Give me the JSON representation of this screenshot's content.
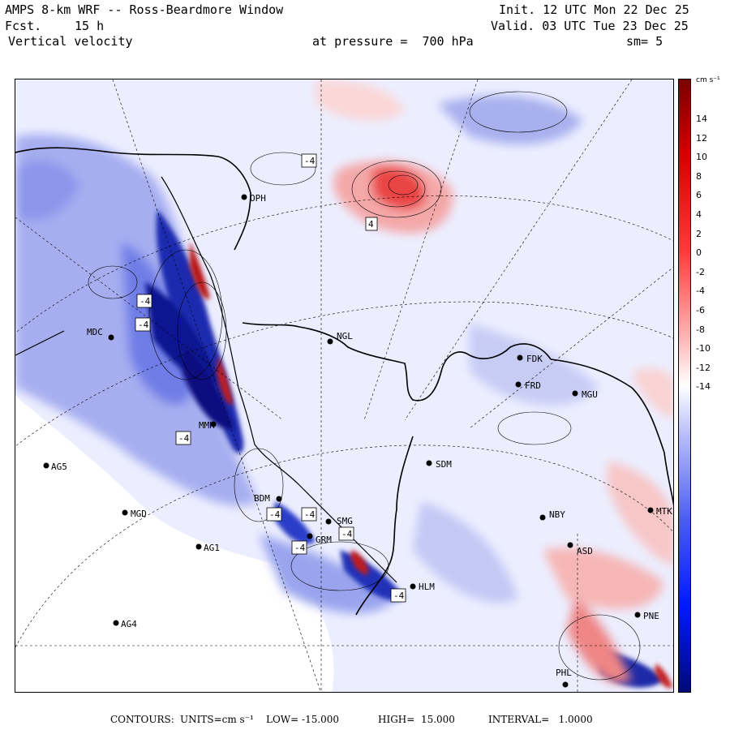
{
  "header": {
    "title": "AMPS 8-km WRF -- Ross-Beardmore Window",
    "init": "Init. 12 UTC Mon 22 Dec 25",
    "fcst_label": "Fcst.",
    "fcst_value": "15 h",
    "valid": "Valid. 03 UTC Tue 23 Dec 25",
    "field": "Vertical velocity",
    "level": "at pressure =  700 hPa",
    "smoothing": "sm= 5"
  },
  "colorbar": {
    "units": "cm s⁻¹",
    "ticks": [
      "14",
      "12",
      "10",
      "8",
      "6",
      "4",
      "2",
      "0",
      "-2",
      "-4",
      "-6",
      "-8",
      "-10",
      "-12",
      "-14"
    ]
  },
  "stations": [
    {
      "name": "OPH"
    },
    {
      "name": "NGL"
    },
    {
      "name": "MDC"
    },
    {
      "name": "FDK"
    },
    {
      "name": "FRD"
    },
    {
      "name": "MGU"
    },
    {
      "name": "AG5"
    },
    {
      "name": "SDM"
    },
    {
      "name": "MGD"
    },
    {
      "name": "NBY"
    },
    {
      "name": "MTK"
    },
    {
      "name": "AG1"
    },
    {
      "name": "SMG"
    },
    {
      "name": "ASD"
    },
    {
      "name": "AG4"
    },
    {
      "name": "PNE"
    },
    {
      "name": "PHL"
    },
    {
      "name": "BDM"
    },
    {
      "name": "HLM"
    },
    {
      "name": "MMH"
    },
    {
      "name": "GRM"
    }
  ],
  "contour_labels": [
    "-4",
    "4",
    "-4",
    "-4",
    "-4",
    "-4",
    "-4",
    "-4",
    "-4",
    "-4"
  ],
  "footer": {
    "contours": "CONTOURS:",
    "units_label": "UNITS=cm s⁻¹",
    "low": "LOW= -15.000",
    "high": "HIGH=  15.000",
    "interval": "INTERVAL=   1.0000"
  }
}
